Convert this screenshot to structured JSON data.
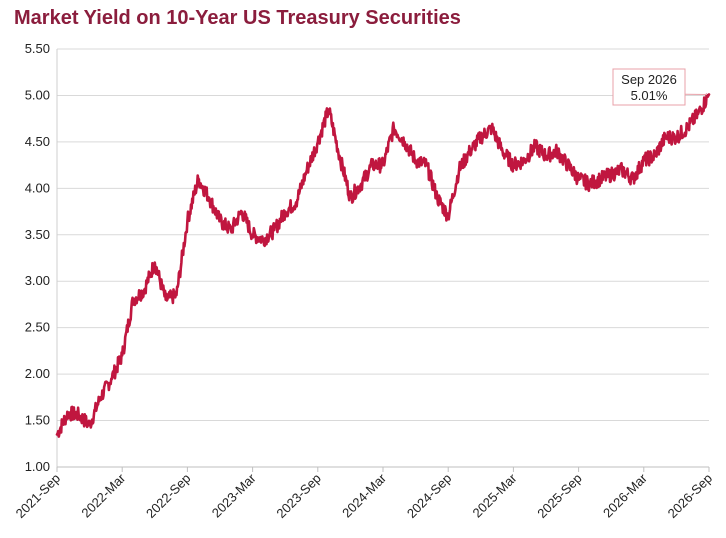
{
  "chart_data": {
    "type": "line",
    "title": "Market Yield on 10-Year US Treasury Securities",
    "xlabel": "",
    "ylabel": "",
    "ylim": [
      1.0,
      5.5
    ],
    "yticks": [
      "1.00",
      "1.50",
      "2.00",
      "2.50",
      "3.00",
      "3.50",
      "4.00",
      "4.50",
      "5.00",
      "5.50"
    ],
    "xticks": [
      "2021-Sep",
      "2022-Mar",
      "2022-Sep",
      "2023-Mar",
      "2023-Sep",
      "2024-Mar",
      "2024-Sep",
      "2025-Mar",
      "2025-Sep",
      "2026-Mar",
      "2026-Sep"
    ],
    "grid": true,
    "legend": "none",
    "line_color": "#c0163f",
    "series": [
      {
        "x": [
          "2021-Sep",
          "2021-Oct",
          "2021-Nov",
          "2021-Dec",
          "2022-Jan",
          "2022-Feb",
          "2022-Mar",
          "2022-Apr",
          "2022-May",
          "2022-Jun",
          "2022-Jul",
          "2022-Aug",
          "2022-Sep",
          "2022-Oct",
          "2022-Nov",
          "2022-Dec",
          "2023-Jan",
          "2023-Feb",
          "2023-Mar",
          "2023-Apr",
          "2023-May",
          "2023-Jun",
          "2023-Jul",
          "2023-Aug",
          "2023-Sep",
          "2023-Oct",
          "2023-Nov",
          "2023-Dec",
          "2024-Jan",
          "2024-Feb",
          "2024-Mar",
          "2024-Apr",
          "2024-May",
          "2024-Jun",
          "2024-Jul",
          "2024-Aug",
          "2024-Sep",
          "2024-Oct",
          "2024-Nov",
          "2024-Dec",
          "2025-Jan",
          "2025-Feb",
          "2025-Mar",
          "2025-Apr",
          "2025-May",
          "2025-Jun",
          "2025-Jul",
          "2025-Aug",
          "2025-Sep",
          "2025-Oct",
          "2025-Nov",
          "2025-Dec",
          "2026-Jan",
          "2026-Feb",
          "2026-Mar",
          "2026-Apr",
          "2026-May",
          "2026-Jun",
          "2026-Jul",
          "2026-Aug",
          "2026-Sep"
        ],
        "values": [
          1.35,
          1.58,
          1.56,
          1.45,
          1.75,
          1.95,
          2.2,
          2.8,
          2.9,
          3.2,
          2.8,
          2.85,
          3.65,
          4.1,
          3.9,
          3.65,
          3.55,
          3.75,
          3.5,
          3.45,
          3.55,
          3.75,
          3.85,
          4.2,
          4.5,
          4.85,
          4.35,
          3.9,
          4.05,
          4.25,
          4.25,
          4.65,
          4.5,
          4.3,
          4.25,
          3.9,
          3.7,
          4.2,
          4.4,
          4.55,
          4.65,
          4.4,
          4.25,
          4.3,
          4.45,
          4.35,
          4.4,
          4.25,
          4.1,
          4.05,
          4.1,
          4.15,
          4.2,
          4.1,
          4.3,
          4.35,
          4.55,
          4.55,
          4.65,
          4.8,
          5.01
        ]
      }
    ],
    "annotation": {
      "label": "Sep 2026",
      "value": "5.01%"
    }
  }
}
